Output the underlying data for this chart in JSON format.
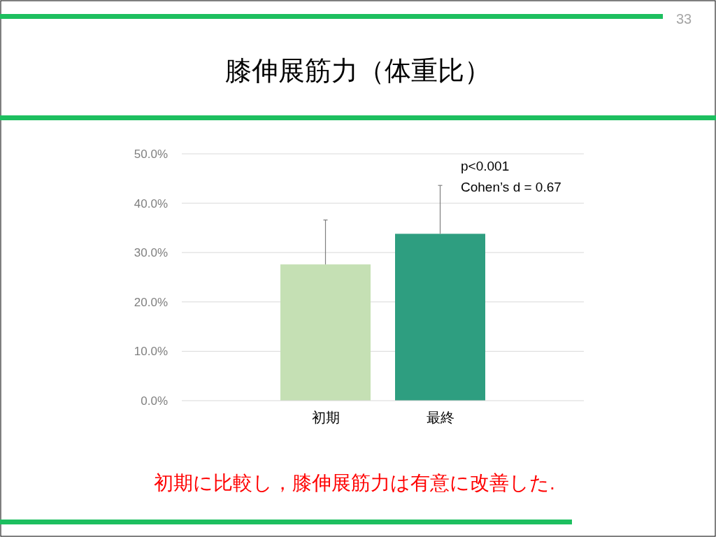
{
  "chart_data": {
    "type": "bar",
    "title": "膝伸展筋力（体重比）",
    "categories": [
      "初期",
      "最終"
    ],
    "values": [
      27.6,
      33.8
    ],
    "colors": [
      "#c5e0b4",
      "#2e9e80"
    ],
    "errors": [
      [
        27.6,
        36.6
      ],
      [
        33.8,
        43.6
      ]
    ],
    "ylim": [
      0,
      50
    ],
    "yticks": [
      {
        "value": 0,
        "label": "0.0%"
      },
      {
        "value": 10,
        "label": "10.0%"
      },
      {
        "value": 20,
        "label": "20.0%"
      },
      {
        "value": 30,
        "label": "30.0%"
      },
      {
        "value": 40,
        "label": "40.0%"
      },
      {
        "value": 50,
        "label": "50.0%"
      }
    ],
    "grid": "y",
    "annotations": [
      "p<0.001",
      "Cohen’s d = 0.67",
      "初期に比較し，膝伸展筋力は有意に改善した.",
      "33"
    ]
  }
}
